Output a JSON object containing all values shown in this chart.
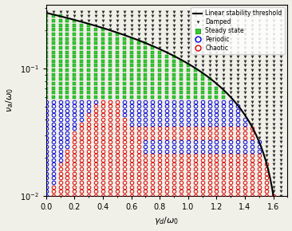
{
  "xlabel": "$\\gamma_d / \\omega_0$",
  "ylabel": "$\\nu_a / \\omega_0$",
  "xlim": [
    0,
    1.7
  ],
  "ylim": [
    0.01,
    0.32
  ],
  "gd_max_at_nu_min": 1.6,
  "nu_max_at_gd_0": 0.275,
  "nu_min": 0.01,
  "threshold_line_color": "#000000",
  "damped_color": "#2a2a2a",
  "steady_color": "#33cc33",
  "steady_edge_color": "#008800",
  "periodic_color": "#0000dd",
  "chaotic_color": "#dd0000",
  "background_color": "#f0f0e8",
  "n_gamma": 34,
  "n_nu": 42
}
